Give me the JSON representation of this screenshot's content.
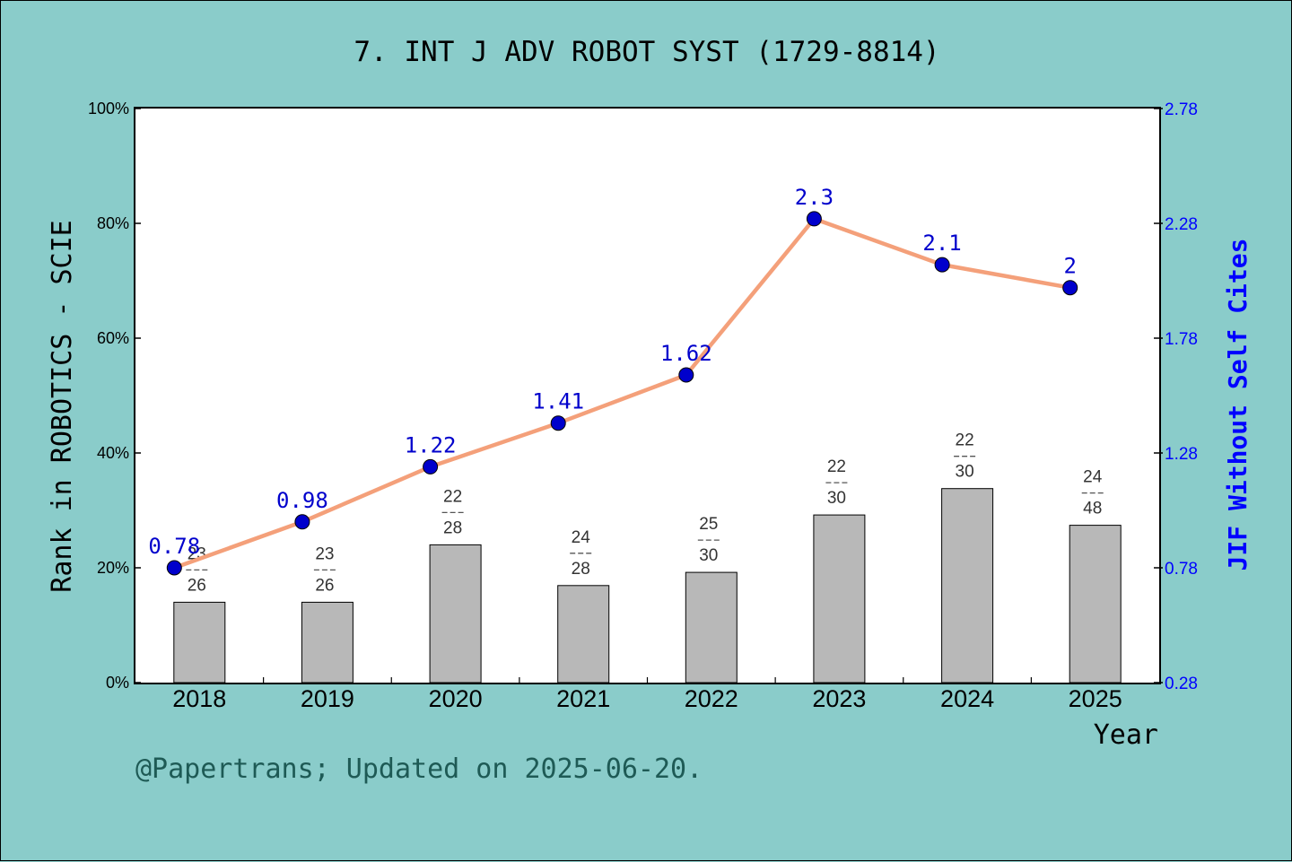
{
  "chart_data": {
    "type": "bar+line",
    "title": "7. INT J ADV ROBOT SYST (1729-8814)",
    "ylabel_left": "Rank in ROBOTICS - SCIE",
    "ylabel_right": "JIF Without Self Cites",
    "xlabel": "Year",
    "categories": [
      "2018",
      "2019",
      "2020",
      "2021",
      "2022",
      "2023",
      "2024",
      "2025"
    ],
    "left_axis": {
      "ylim": [
        0,
        100
      ],
      "ticks": [
        "0%",
        "20%",
        "40%",
        "60%",
        "80%",
        "100%"
      ],
      "tick_values": [
        0,
        20,
        40,
        60,
        80,
        100
      ]
    },
    "right_axis": {
      "ylim": [
        0.28,
        2.78
      ],
      "ticks": [
        "0.28",
        "0.78",
        "1.28",
        "1.78",
        "2.28",
        "2.78"
      ],
      "tick_values": [
        0.28,
        0.78,
        1.28,
        1.78,
        2.28,
        2.78
      ]
    },
    "bars": {
      "name": "Rank",
      "color": "#b8b8b8",
      "values": [
        14.0,
        14.0,
        24.0,
        16.9,
        19.2,
        29.2,
        33.8,
        27.4
      ],
      "rank": [
        "23",
        "23",
        "22",
        "24",
        "25",
        "22",
        "22",
        "24"
      ],
      "total": [
        "26",
        "26",
        "28",
        "28",
        "30",
        "30",
        "30",
        "48"
      ]
    },
    "line": {
      "name": "JIF Without Self Cites",
      "color": "#f4a07a",
      "marker_color": "#0000cc",
      "values": [
        0.78,
        0.98,
        1.22,
        1.41,
        1.62,
        2.3,
        2.1,
        2.0
      ],
      "labels": [
        "0.78",
        "0.98",
        "1.22",
        "1.41",
        "1.62",
        "2.3",
        "2.1",
        "2"
      ]
    },
    "grid": false
  },
  "footer": "@Papertrans; Updated on 2025-06-20."
}
